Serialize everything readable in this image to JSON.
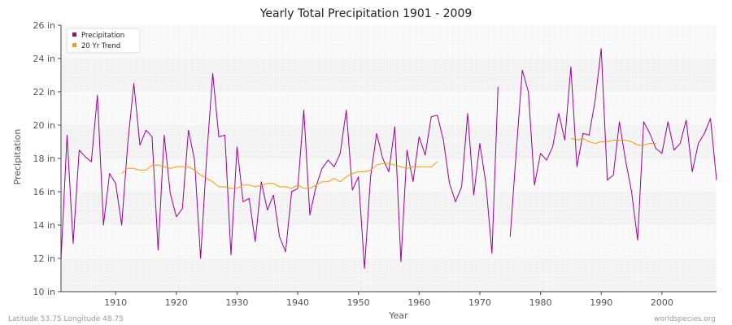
{
  "chart_data": {
    "type": "line",
    "title": "Yearly Total Precipitation 1901 - 2009",
    "xlabel": "Year",
    "ylabel": "Precipitation",
    "xlim": [
      1901,
      2009
    ],
    "ylim": [
      10,
      26
    ],
    "y_ticks": [
      10,
      12,
      14,
      16,
      18,
      20,
      22,
      24,
      26
    ],
    "y_tick_labels": [
      "10 in",
      "12 in",
      "14 in",
      "16 in",
      "18 in",
      "20 in",
      "22 in",
      "24 in",
      "26 in"
    ],
    "x_ticks": [
      1910,
      1920,
      1930,
      1940,
      1950,
      1960,
      1970,
      1980,
      1990,
      2000
    ],
    "x_tick_labels": [
      "1910",
      "1920",
      "1930",
      "1940",
      "1950",
      "1960",
      "1970",
      "1980",
      "1990",
      "2000"
    ],
    "grid": true,
    "legend_position": "top-left",
    "series": [
      {
        "name": "Precipitation",
        "color": "#990099",
        "x": [
          1901,
          1902,
          1903,
          1904,
          1905,
          1906,
          1907,
          1908,
          1909,
          1910,
          1911,
          1912,
          1913,
          1914,
          1915,
          1916,
          1917,
          1918,
          1919,
          1920,
          1921,
          1922,
          1923,
          1924,
          1925,
          1926,
          1927,
          1928,
          1929,
          1930,
          1931,
          1932,
          1933,
          1934,
          1935,
          1936,
          1937,
          1938,
          1939,
          1940,
          1941,
          1942,
          1943,
          1944,
          1945,
          1946,
          1947,
          1948,
          1949,
          1950,
          1951,
          1952,
          1953,
          1954,
          1955,
          1956,
          1957,
          1958,
          1959,
          1960,
          1961,
          1962,
          1963,
          1964,
          1965,
          1966,
          1967,
          1968,
          1969,
          1970,
          1971,
          1972,
          1973,
          1974,
          1975,
          1976,
          1977,
          1978,
          1979,
          1980,
          1981,
          1982,
          1983,
          1984,
          1985,
          1986,
          1987,
          1988,
          1989,
          1990,
          1991,
          1992,
          1993,
          1994,
          1995,
          1996,
          1997,
          1998,
          1999,
          2000,
          2001,
          2002,
          2003,
          2004,
          2005,
          2006,
          2007,
          2008,
          2009
        ],
        "values": [
          11.9,
          19.4,
          12.9,
          18.5,
          18.1,
          17.8,
          21.8,
          14.0,
          17.1,
          16.5,
          14.0,
          18.9,
          22.5,
          18.8,
          19.7,
          19.3,
          12.5,
          19.4,
          15.9,
          14.5,
          15.0,
          19.7,
          17.9,
          12.0,
          18.1,
          23.1,
          19.3,
          19.4,
          12.2,
          18.7,
          15.4,
          15.6,
          13.0,
          16.6,
          14.9,
          15.8,
          13.3,
          12.4,
          16.0,
          16.2,
          20.9,
          14.6,
          16.3,
          17.4,
          17.9,
          17.5,
          18.3,
          20.9,
          16.1,
          16.9,
          11.4,
          16.9,
          19.5,
          18.0,
          17.2,
          19.9,
          11.8,
          18.5,
          16.6,
          19.3,
          18.2,
          20.5,
          20.6,
          19.1,
          16.5,
          15.4,
          16.3,
          20.7,
          15.8,
          18.9,
          16.5,
          12.3,
          22.3,
          null,
          13.3,
          18.4,
          23.3,
          22.0,
          16.4,
          18.3,
          17.9,
          18.7,
          20.7,
          19.1,
          23.5,
          17.5,
          19.5,
          19.4,
          21.5,
          24.6,
          16.7,
          17.0,
          20.2,
          17.9,
          16.0,
          13.1,
          20.2,
          19.5,
          18.6,
          18.3,
          20.2,
          18.5,
          18.9,
          20.3,
          17.2,
          18.9,
          19.5,
          20.4,
          16.7
        ]
      },
      {
        "name": "20 Yr Trend",
        "color": "#ff9900",
        "x": [
          1911,
          1912,
          1913,
          1914,
          1915,
          1916,
          1917,
          1918,
          1919,
          1920,
          1921,
          1922,
          1923,
          1924,
          1925,
          1926,
          1927,
          1928,
          1929,
          1930,
          1931,
          1932,
          1933,
          1934,
          1935,
          1936,
          1937,
          1938,
          1939,
          1940,
          1941,
          1942,
          1943,
          1944,
          1945,
          1946,
          1947,
          1948,
          1949,
          1950,
          1951,
          1952,
          1953,
          1954,
          1955,
          1956,
          1957,
          1958,
          1959,
          1960,
          1961,
          1962,
          1963,
          1964,
          1965,
          1966,
          1967,
          1968,
          1969,
          1970,
          1971,
          1972,
          1973,
          1974,
          1975,
          1976,
          1977,
          1978,
          1979,
          1980,
          1981,
          1982,
          1983,
          1984,
          1985,
          1986,
          1987,
          1988,
          1989,
          1990,
          1991,
          1992,
          1993,
          1994,
          1995,
          1996,
          1997,
          1998,
          1999
        ],
        "values": [
          17.1,
          17.4,
          17.4,
          17.3,
          17.3,
          17.6,
          17.6,
          17.5,
          17.4,
          17.5,
          17.5,
          17.5,
          17.3,
          17.0,
          16.8,
          16.6,
          16.3,
          16.3,
          16.2,
          16.2,
          16.4,
          16.4,
          16.3,
          16.4,
          16.5,
          16.5,
          16.3,
          16.3,
          16.2,
          16.4,
          16.2,
          16.2,
          16.4,
          16.6,
          16.6,
          16.8,
          16.6,
          16.9,
          17.1,
          17.2,
          17.2,
          17.3,
          17.6,
          17.7,
          17.7,
          17.6,
          17.5,
          17.4,
          17.5,
          17.5,
          17.5,
          17.5,
          17.8,
          null,
          null,
          null,
          null,
          null,
          null,
          null,
          null,
          null,
          null,
          null,
          null,
          null,
          null,
          null,
          null,
          null,
          null,
          null,
          null,
          null,
          19.2,
          19.1,
          19.2,
          19.0,
          18.9,
          19.0,
          19.0,
          19.1,
          19.1,
          19.1,
          19.0,
          18.8,
          18.8,
          18.9,
          18.9
        ]
      }
    ]
  },
  "footer": {
    "location": "Latitude 53.75 Longitude 48.75",
    "site": "worldspecies.org"
  }
}
